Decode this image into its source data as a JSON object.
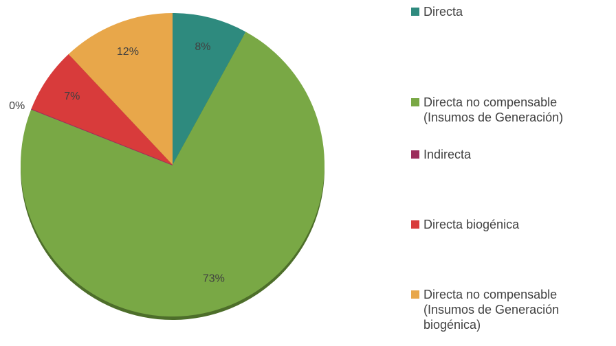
{
  "chart_data": {
    "type": "pie",
    "categories": [
      "Directa",
      "Directa no compensable (Insumos de Generación)",
      "Indirecta",
      "Directa biogénica",
      "Directa no compensable (Insumos de Generación biogénica)"
    ],
    "values": [
      8,
      73,
      0,
      7,
      12
    ],
    "value_labels": [
      "8%",
      "73%",
      "0%",
      "7%",
      "12%"
    ],
    "colors": [
      "#2e8a7e",
      "#79a845",
      "#9c2e5c",
      "#d83b3b",
      "#e8a74a"
    ],
    "legend": "right"
  }
}
